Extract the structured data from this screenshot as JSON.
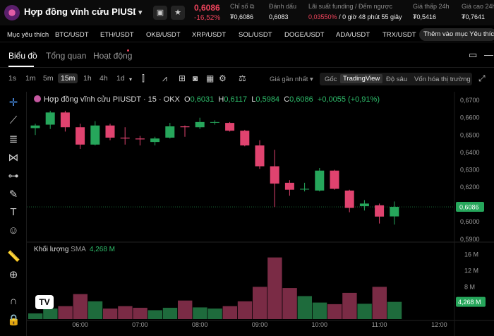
{
  "header": {
    "title": "Hợp đồng vĩnh cửu PIUSDT",
    "price": "0,6086",
    "change_pct": "-16,52%",
    "stats": [
      {
        "label": "Chỉ số",
        "value": "₮0,6086"
      },
      {
        "label": "Đánh dấu",
        "value": "0,6083"
      },
      {
        "label": "Lãi suất funding / Đếm ngược",
        "value_red": "0,03550%",
        "value": "/ 0 giờ 48 phút 55 giây"
      },
      {
        "label": "Giá thấp 24h",
        "value": "₮0,5416"
      },
      {
        "label": "Giá cao 24h",
        "value": "₮0,7641"
      }
    ]
  },
  "tickers": [
    "Mục yêu thích",
    "BTC/USDT",
    "ETH/USDT",
    "OKB/USDT",
    "XRP/USDT",
    "SOL/USDT",
    "DOGE/USDT",
    "ADA/USDT",
    "TRX/USDT"
  ],
  "add_favorite_label": "Thêm vào mục Yêu thích",
  "tabs": [
    "Biểu đồ",
    "Tổng quan",
    "Hoạt động"
  ],
  "timeframes": [
    "1s",
    "1m",
    "5m",
    "15m",
    "1h",
    "4h",
    "1d"
  ],
  "price_source": "Giá gần nhất",
  "view_modes": [
    "Gốc",
    "TradingView",
    "Độ sâu",
    "Vốn hóa thị trường"
  ],
  "legend": {
    "symbol": "Hợp đồng vĩnh cửu PIUSDT · 15 · OKX",
    "o_label": "O",
    "o": "0,6031",
    "h_label": "H",
    "h": "0,6117",
    "l_label": "L",
    "l": "0,5984",
    "c_label": "C",
    "c": "0,6086",
    "chg": "+0,0055 (+0,91%)"
  },
  "volume_legend": {
    "label": "Khối lượng",
    "sma_label": "SMA",
    "value": "4,268 M"
  },
  "colors": {
    "up": "#26a65b",
    "down": "#e0436f",
    "vol_up": "#1e6b3c",
    "vol_down": "#7a2b45"
  },
  "chart_data": {
    "type": "candlestick",
    "price_axis_ticks": [
      "0,6700",
      "0,6600",
      "0,6500",
      "0,6400",
      "0,6300",
      "0,6200",
      "0,6100",
      "0,6000",
      "0,5900"
    ],
    "price_ylim": [
      0.5895,
      0.6725
    ],
    "current_price_label": "0,6086",
    "current_price": 0.6086,
    "volume_axis_ticks": [
      "16 M",
      "12 M",
      "8 M"
    ],
    "volume_ylim": [
      0,
      17
    ],
    "current_volume_label": "4,268 M",
    "x_ticks": [
      "06:00",
      "07:00",
      "08:00",
      "09:00",
      "10:00",
      "11:00",
      "12:00"
    ],
    "candles": [
      {
        "t": "05:15",
        "o": 0.654,
        "h": 0.6565,
        "l": 0.65,
        "c": 0.6555,
        "v": 1.4
      },
      {
        "t": "05:30",
        "o": 0.656,
        "h": 0.664,
        "l": 0.6535,
        "c": 0.663,
        "v": 2.6
      },
      {
        "t": "05:45",
        "o": 0.663,
        "h": 0.664,
        "l": 0.652,
        "c": 0.6545,
        "v": 3.2
      },
      {
        "t": "06:00",
        "o": 0.6545,
        "h": 0.6565,
        "l": 0.642,
        "c": 0.6445,
        "v": 6.2
      },
      {
        "t": "06:15",
        "o": 0.6445,
        "h": 0.658,
        "l": 0.644,
        "c": 0.6555,
        "v": 4.4
      },
      {
        "t": "06:30",
        "o": 0.6555,
        "h": 0.6565,
        "l": 0.647,
        "c": 0.6485,
        "v": 2.6
      },
      {
        "t": "06:45",
        "o": 0.6485,
        "h": 0.6545,
        "l": 0.6445,
        "c": 0.648,
        "v": 3.2
      },
      {
        "t": "07:00",
        "o": 0.648,
        "h": 0.6495,
        "l": 0.644,
        "c": 0.6475,
        "v": 2.8
      },
      {
        "t": "07:15",
        "o": 0.646,
        "h": 0.649,
        "l": 0.644,
        "c": 0.648,
        "v": 2.2
      },
      {
        "t": "07:30",
        "o": 0.6485,
        "h": 0.657,
        "l": 0.648,
        "c": 0.655,
        "v": 2.8
      },
      {
        "t": "07:45",
        "o": 0.655,
        "h": 0.6555,
        "l": 0.649,
        "c": 0.6545,
        "v": 4.6
      },
      {
        "t": "08:00",
        "o": 0.6545,
        "h": 0.66,
        "l": 0.6535,
        "c": 0.6575,
        "v": 2.9
      },
      {
        "t": "08:15",
        "o": 0.6575,
        "h": 0.6585,
        "l": 0.656,
        "c": 0.6575,
        "v": 2.6
      },
      {
        "t": "08:30",
        "o": 0.657,
        "h": 0.6575,
        "l": 0.652,
        "c": 0.6525,
        "v": 3.2
      },
      {
        "t": "08:45",
        "o": 0.6525,
        "h": 0.653,
        "l": 0.6435,
        "c": 0.644,
        "v": 4.4
      },
      {
        "t": "09:00",
        "o": 0.644,
        "h": 0.647,
        "l": 0.6305,
        "c": 0.632,
        "v": 8.0
      },
      {
        "t": "09:15",
        "o": 0.632,
        "h": 0.6415,
        "l": 0.6085,
        "c": 0.622,
        "v": 15.3
      },
      {
        "t": "09:30",
        "o": 0.6225,
        "h": 0.624,
        "l": 0.615,
        "c": 0.6185,
        "v": 7.7
      },
      {
        "t": "09:45",
        "o": 0.619,
        "h": 0.6225,
        "l": 0.6175,
        "c": 0.619,
        "v": 5.7
      },
      {
        "t": "10:00",
        "o": 0.618,
        "h": 0.631,
        "l": 0.6175,
        "c": 0.6295,
        "v": 4.1
      },
      {
        "t": "10:15",
        "o": 0.6295,
        "h": 0.63,
        "l": 0.6185,
        "c": 0.619,
        "v": 3.7
      },
      {
        "t": "10:30",
        "o": 0.618,
        "h": 0.6185,
        "l": 0.6055,
        "c": 0.608,
        "v": 6.5
      },
      {
        "t": "10:45",
        "o": 0.609,
        "h": 0.6125,
        "l": 0.6065,
        "c": 0.6105,
        "v": 3.8
      },
      {
        "t": "11:00",
        "o": 0.6095,
        "h": 0.6105,
        "l": 0.599,
        "c": 0.603,
        "v": 8.0
      },
      {
        "t": "11:15",
        "o": 0.6031,
        "h": 0.6117,
        "l": 0.5984,
        "c": 0.6086,
        "v": 4.268
      }
    ]
  }
}
